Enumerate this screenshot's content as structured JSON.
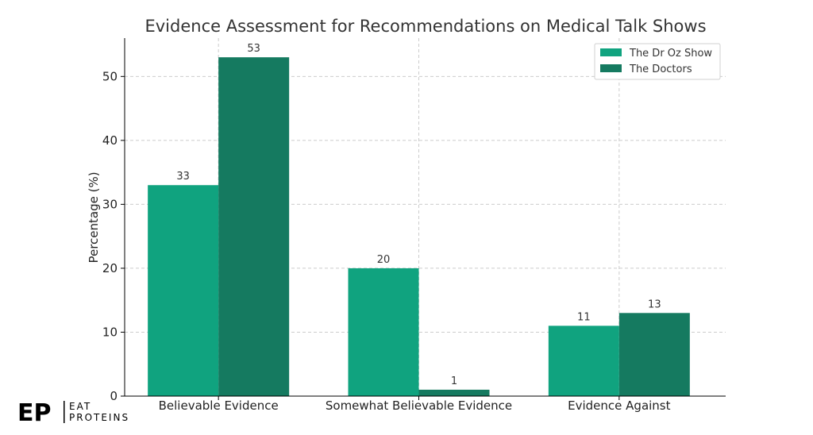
{
  "chart_data": {
    "type": "bar",
    "title": "Evidence Assessment for Recommendations on Medical Talk Shows",
    "xlabel": "",
    "ylabel": "Percentage (%)",
    "categories": [
      "Believable Evidence",
      "Somewhat Believable Evidence",
      "Evidence Against"
    ],
    "series": [
      {
        "name": "The Dr Oz Show",
        "values": [
          33,
          20,
          11
        ],
        "color": "#10a37f"
      },
      {
        "name": "The Doctors",
        "values": [
          53,
          1,
          13
        ],
        "color": "#157a60"
      }
    ],
    "ylim": [
      0,
      56
    ],
    "yticks": [
      0,
      10,
      20,
      30,
      40,
      50
    ],
    "grid": true,
    "legend_position": "top-right"
  },
  "logo": {
    "mark": "EP",
    "line1": "EAT",
    "line2": "PROTEINS"
  }
}
